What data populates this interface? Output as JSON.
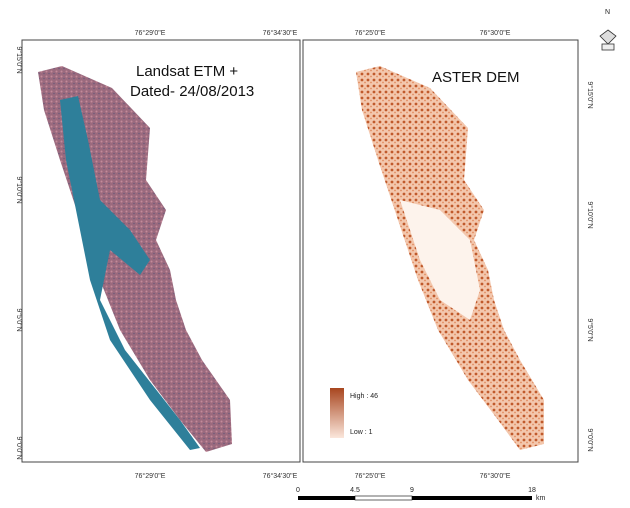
{
  "left_panel": {
    "title_line1": "Landsat ETM +",
    "title_line2": "Dated- 24/08/2013",
    "top_ticks": [
      "76°29'0\"E",
      "76°34'30\"E"
    ],
    "bottom_ticks": [
      "76°29'0\"E",
      "76°34'30\"E"
    ],
    "side_ticks": [
      "9°15'0\"N",
      "9°10'0\"N",
      "9°5'0\"N",
      "9°0'0\"N"
    ]
  },
  "right_panel": {
    "title": "ASTER DEM",
    "top_ticks": [
      "76°25'0\"E",
      "76°30'0\"E"
    ],
    "bottom_ticks": [
      "76°25'0\"E",
      "76°30'0\"E"
    ],
    "side_ticks": [
      "9°15'0\"N",
      "9°10'0\"N",
      "9°5'0\"N",
      "9°0'0\"N"
    ],
    "legend": {
      "high": "High : 46",
      "low": "Low : 1"
    }
  },
  "scale_bar": {
    "labels": [
      "0",
      "4.5",
      "9",
      "18"
    ],
    "unit": "km"
  },
  "north_arrow": "N"
}
